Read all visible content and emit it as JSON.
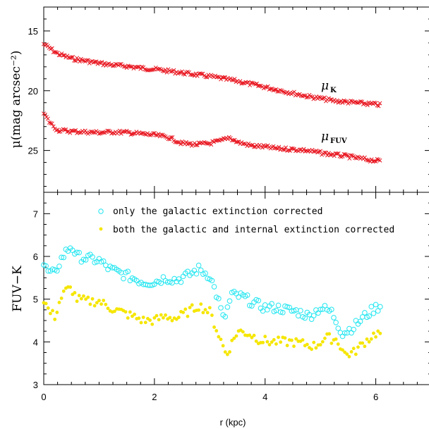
{
  "chart_data": [
    {
      "type": "scatter",
      "panel": "top",
      "ylabel": "μ(mag arcsec⁻²)",
      "xlabel": "",
      "xlim": [
        0,
        7
      ],
      "ylim": [
        28.5,
        13
      ],
      "y_inverted": true,
      "yticks": [
        15,
        20,
        25
      ],
      "series": [
        {
          "name": "μK",
          "marker": "x",
          "color": "#e8141e",
          "x": [
            0,
            0.25,
            0.5,
            0.75,
            1.0,
            1.25,
            1.5,
            1.75,
            2.0,
            2.25,
            2.5,
            2.75,
            3.0,
            3.25,
            3.5,
            3.75,
            4.0,
            4.25,
            4.5,
            4.75,
            5.0,
            5.25,
            5.5,
            5.75,
            6.0,
            6.1
          ],
          "y": [
            16.1,
            16.9,
            17.3,
            17.5,
            17.7,
            17.85,
            17.95,
            18.1,
            18.2,
            18.35,
            18.5,
            18.65,
            18.8,
            19.0,
            19.2,
            19.45,
            19.7,
            19.95,
            20.2,
            20.45,
            20.65,
            20.85,
            20.95,
            21.05,
            21.15,
            21.2
          ]
        },
        {
          "name": "μFUV",
          "marker": "x",
          "color": "#e8141e",
          "x": [
            0,
            0.1,
            0.25,
            0.5,
            0.75,
            1.0,
            1.25,
            1.5,
            1.75,
            2.0,
            2.25,
            2.5,
            2.75,
            3.0,
            3.2,
            3.35,
            3.5,
            3.75,
            4.0,
            4.25,
            4.5,
            4.75,
            5.0,
            5.25,
            5.5,
            5.75,
            6.0,
            6.1
          ],
          "y": [
            21.9,
            22.6,
            23.3,
            23.4,
            23.45,
            23.5,
            23.45,
            23.5,
            23.6,
            23.7,
            23.9,
            24.4,
            24.5,
            24.4,
            24.2,
            23.9,
            24.3,
            24.6,
            24.7,
            24.85,
            24.9,
            25.0,
            25.2,
            25.35,
            25.5,
            25.7,
            25.85,
            25.9
          ]
        }
      ],
      "curve_labels": [
        {
          "main": "μ",
          "sub": "K"
        },
        {
          "main": "μ",
          "sub": "FUV"
        }
      ]
    },
    {
      "type": "scatter",
      "panel": "bottom",
      "ylabel": "FUV−K",
      "xlabel": "r (kpc)",
      "xlim": [
        0,
        7
      ],
      "ylim": [
        3,
        7.5
      ],
      "yticks": [
        3,
        4,
        5,
        6,
        7
      ],
      "xticks": [
        0,
        2,
        4,
        6
      ],
      "series": [
        {
          "name": "only the galactic extinction corrected",
          "marker": "circle-open",
          "color": "#22e6f0",
          "x": [
            0,
            0.1,
            0.2,
            0.3,
            0.4,
            0.5,
            0.6,
            0.8,
            1.0,
            1.2,
            1.4,
            1.6,
            1.8,
            2.0,
            2.2,
            2.4,
            2.6,
            2.8,
            3.0,
            3.15,
            3.25,
            3.4,
            3.6,
            3.8,
            4.0,
            4.2,
            4.4,
            4.6,
            4.8,
            5.0,
            5.2,
            5.4,
            5.6,
            5.8,
            6.0,
            6.1
          ],
          "y": [
            5.8,
            5.6,
            5.6,
            5.9,
            6.1,
            6.25,
            6.0,
            5.95,
            5.9,
            5.7,
            5.6,
            5.5,
            5.4,
            5.4,
            5.5,
            5.45,
            5.55,
            5.7,
            5.55,
            5.0,
            4.5,
            5.1,
            5.05,
            4.9,
            4.8,
            4.8,
            4.75,
            4.7,
            4.6,
            4.8,
            4.7,
            4.2,
            4.35,
            4.6,
            4.8,
            4.85
          ]
        },
        {
          "name": "both the galactic and internal extinction corrected",
          "marker": "dot",
          "color": "#f5e600",
          "x": [
            0,
            0.1,
            0.2,
            0.3,
            0.4,
            0.5,
            0.6,
            0.8,
            1.0,
            1.2,
            1.4,
            1.6,
            1.8,
            2.0,
            2.2,
            2.4,
            2.6,
            2.8,
            3.0,
            3.15,
            3.3,
            3.5,
            3.7,
            3.9,
            4.1,
            4.3,
            4.5,
            4.7,
            4.9,
            5.1,
            5.3,
            5.45,
            5.6,
            5.8,
            6.0,
            6.1
          ],
          "y": [
            5.0,
            4.7,
            4.6,
            5.0,
            5.2,
            5.25,
            5.0,
            4.95,
            4.95,
            4.8,
            4.7,
            4.6,
            4.5,
            4.5,
            4.6,
            4.55,
            4.7,
            4.85,
            4.7,
            4.2,
            3.7,
            4.25,
            4.2,
            4.05,
            4.0,
            4.0,
            4.0,
            3.95,
            3.9,
            4.1,
            4.05,
            3.7,
            3.75,
            4.0,
            4.2,
            4.2
          ]
        }
      ]
    }
  ]
}
